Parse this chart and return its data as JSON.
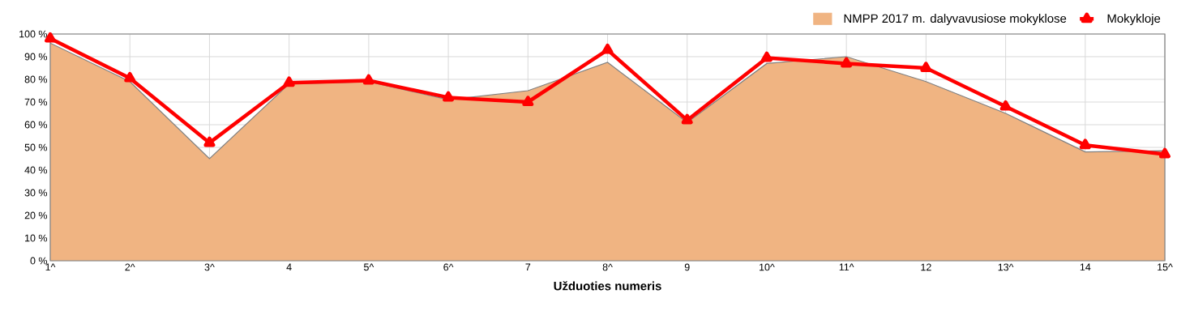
{
  "chart_data": {
    "type": "line",
    "xlabel": "Užduoties numeris",
    "categories": [
      "1^",
      "2^",
      "3^",
      "4",
      "5^",
      "6^",
      "7",
      "8^",
      "9",
      "10^",
      "11^",
      "12",
      "13^",
      "14",
      "15^"
    ],
    "series": [
      {
        "name": "NMPP 2017 m. dalyvavusiose mokyklose",
        "type": "area",
        "color": "#f0b482",
        "values": [
          96,
          79,
          45,
          78,
          79,
          71,
          75,
          87.5,
          61,
          87,
          90,
          79,
          65,
          48,
          48.5
        ]
      },
      {
        "name": "Mokykloje",
        "color": "#ff0000",
        "marker": "triangle",
        "values": [
          98,
          80.5,
          52,
          78.5,
          79.5,
          72,
          70,
          93,
          62,
          89.5,
          87,
          85,
          68,
          51,
          47
        ]
      }
    ],
    "ylim": [
      0,
      100
    ],
    "yticks": [
      {
        "value": 0,
        "label": "0 %"
      },
      {
        "value": 10,
        "label": "10 %"
      },
      {
        "value": 20,
        "label": "20 %"
      },
      {
        "value": 30,
        "label": "30 %"
      },
      {
        "value": 40,
        "label": "40 %"
      },
      {
        "value": 50,
        "label": "50 %"
      },
      {
        "value": 60,
        "label": "60 %"
      },
      {
        "value": 70,
        "label": "70 %"
      },
      {
        "value": 80,
        "label": "80 %"
      },
      {
        "value": 90,
        "label": "90 %"
      },
      {
        "value": 100,
        "label": "100 %"
      }
    ],
    "grid": true,
    "legend": "top right"
  }
}
